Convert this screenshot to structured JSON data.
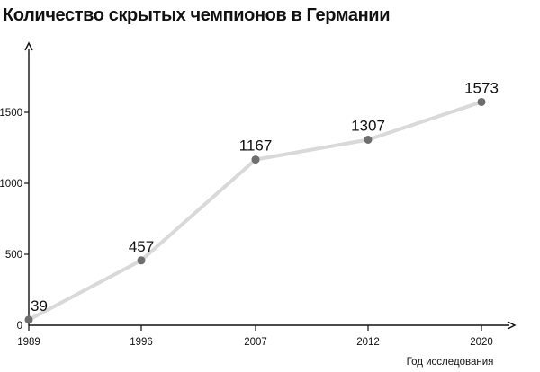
{
  "chart_data": {
    "type": "line",
    "title": "Количество скрытых чемпионов в Германии",
    "xlabel": "Год исследования",
    "ylabel": "",
    "x": [
      "1989",
      "1996",
      "2007",
      "2012",
      "2020"
    ],
    "series": [
      {
        "values": [
          39,
          457,
          1167,
          1307,
          1573
        ],
        "labels": [
          "39",
          "457",
          "1167",
          "1307",
          "1573"
        ]
      }
    ],
    "yticks": [
      0,
      500,
      1000,
      1500
    ],
    "ytick_labels": [
      "0",
      "500",
      "1000",
      "1500"
    ],
    "ylim": [
      0,
      1920
    ],
    "grid": false,
    "legend": "none",
    "colors": {
      "line": "#d9d9d9",
      "marker": "#6e6e6e",
      "axis": "#111111",
      "text": "#111111"
    }
  }
}
